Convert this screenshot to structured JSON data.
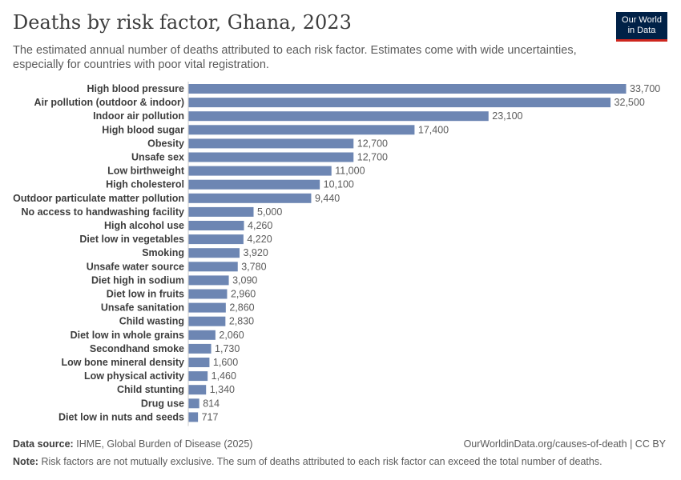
{
  "header": {
    "title": "Deaths by risk factor, Ghana, 2023",
    "subtitle": "The estimated annual number of deaths attributed to each risk factor. Estimates come with wide uncertainties, especially for countries with poor vital registration."
  },
  "logo": {
    "line1": "Our World",
    "line2": "in Data"
  },
  "footer": {
    "source_label": "Data source:",
    "source_text": "IHME, Global Burden of Disease (2025)",
    "url": "OurWorldinData.org/causes-of-death | CC BY",
    "note_label": "Note:",
    "note_text": "Risk factors are not mutually exclusive. The sum of deaths attributed to each risk factor can exceed the total number of deaths."
  },
  "colors": {
    "bar": "#6d86b3",
    "axis": "#cccccc"
  },
  "chart_data": {
    "type": "bar",
    "orientation": "horizontal",
    "title": "Deaths by risk factor, Ghana, 2023",
    "xlabel": "",
    "ylabel": "",
    "xlim": [
      0,
      33700
    ],
    "categories": [
      "High blood pressure",
      "Air pollution (outdoor & indoor)",
      "Indoor air pollution",
      "High blood sugar",
      "Obesity",
      "Unsafe sex",
      "Low birthweight",
      "High cholesterol",
      "Outdoor particulate matter pollution",
      "No access to handwashing facility",
      "High alcohol use",
      "Diet low in vegetables",
      "Smoking",
      "Unsafe water source",
      "Diet high in sodium",
      "Diet low in fruits",
      "Unsafe sanitation",
      "Child wasting",
      "Diet low in whole grains",
      "Secondhand smoke",
      "Low bone mineral density",
      "Low physical activity",
      "Child stunting",
      "Drug use",
      "Diet low in nuts and seeds"
    ],
    "values": [
      33700,
      32500,
      23100,
      17400,
      12700,
      12700,
      11000,
      10100,
      9440,
      5000,
      4260,
      4220,
      3920,
      3780,
      3090,
      2960,
      2860,
      2830,
      2060,
      1730,
      1600,
      1460,
      1340,
      814,
      717
    ],
    "value_labels": [
      "33,700",
      "32,500",
      "23,100",
      "17,400",
      "12,700",
      "12,700",
      "11,000",
      "10,100",
      "9,440",
      "5,000",
      "4,260",
      "4,220",
      "3,920",
      "3,780",
      "3,090",
      "2,960",
      "2,860",
      "2,830",
      "2,060",
      "1,730",
      "1,600",
      "1,460",
      "1,340",
      "814",
      "717"
    ]
  }
}
